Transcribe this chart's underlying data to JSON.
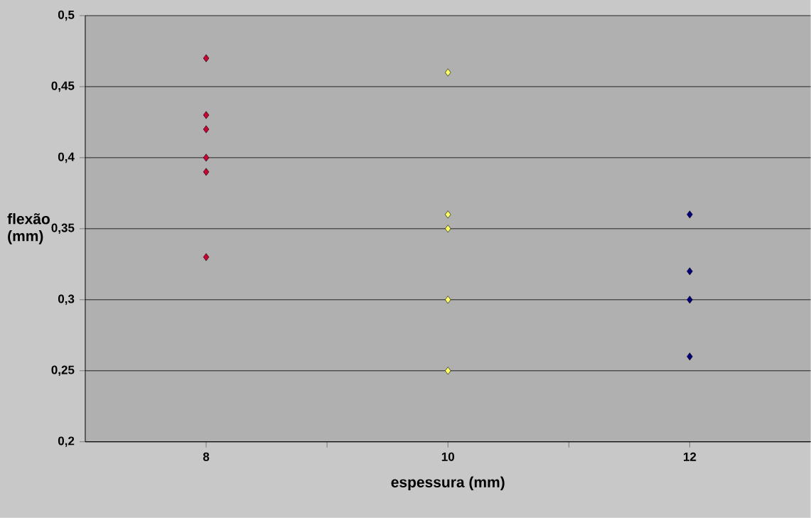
{
  "chart_data": {
    "type": "scatter",
    "xlabel": "espessura (mm)",
    "ylabel": "flexão (mm)",
    "xlim": [
      7,
      13
    ],
    "xticks": [
      8,
      {
        "value": 9,
        "label": null
      },
      10,
      {
        "value": 11,
        "label": null
      },
      12
    ],
    "ylim": [
      0.2,
      0.5
    ],
    "yticks": [
      {
        "value": 0.2,
        "label": "0,2"
      },
      {
        "value": 0.25,
        "label": "0,25"
      },
      {
        "value": 0.3,
        "label": "0,3"
      },
      {
        "value": 0.35,
        "label": "0,35"
      },
      {
        "value": 0.4,
        "label": "0,4"
      },
      {
        "value": 0.45,
        "label": "0,45"
      },
      {
        "value": 0.5,
        "label": "0,5"
      }
    ],
    "grid": "y",
    "marker": "diamond",
    "series": [
      {
        "color": "#cc0033",
        "x": [
          8,
          8,
          8,
          8,
          8,
          8
        ],
        "values": [
          0.47,
          0.43,
          0.42,
          0.4,
          0.39,
          0.33
        ]
      },
      {
        "color": "#ffff66",
        "x": [
          10,
          10,
          10,
          10,
          10
        ],
        "values": [
          0.46,
          0.36,
          0.35,
          0.3,
          0.25
        ]
      },
      {
        "color": "#000080",
        "x": [
          12,
          12,
          12,
          12
        ],
        "values": [
          0.36,
          0.32,
          0.3,
          0.26
        ]
      }
    ]
  }
}
